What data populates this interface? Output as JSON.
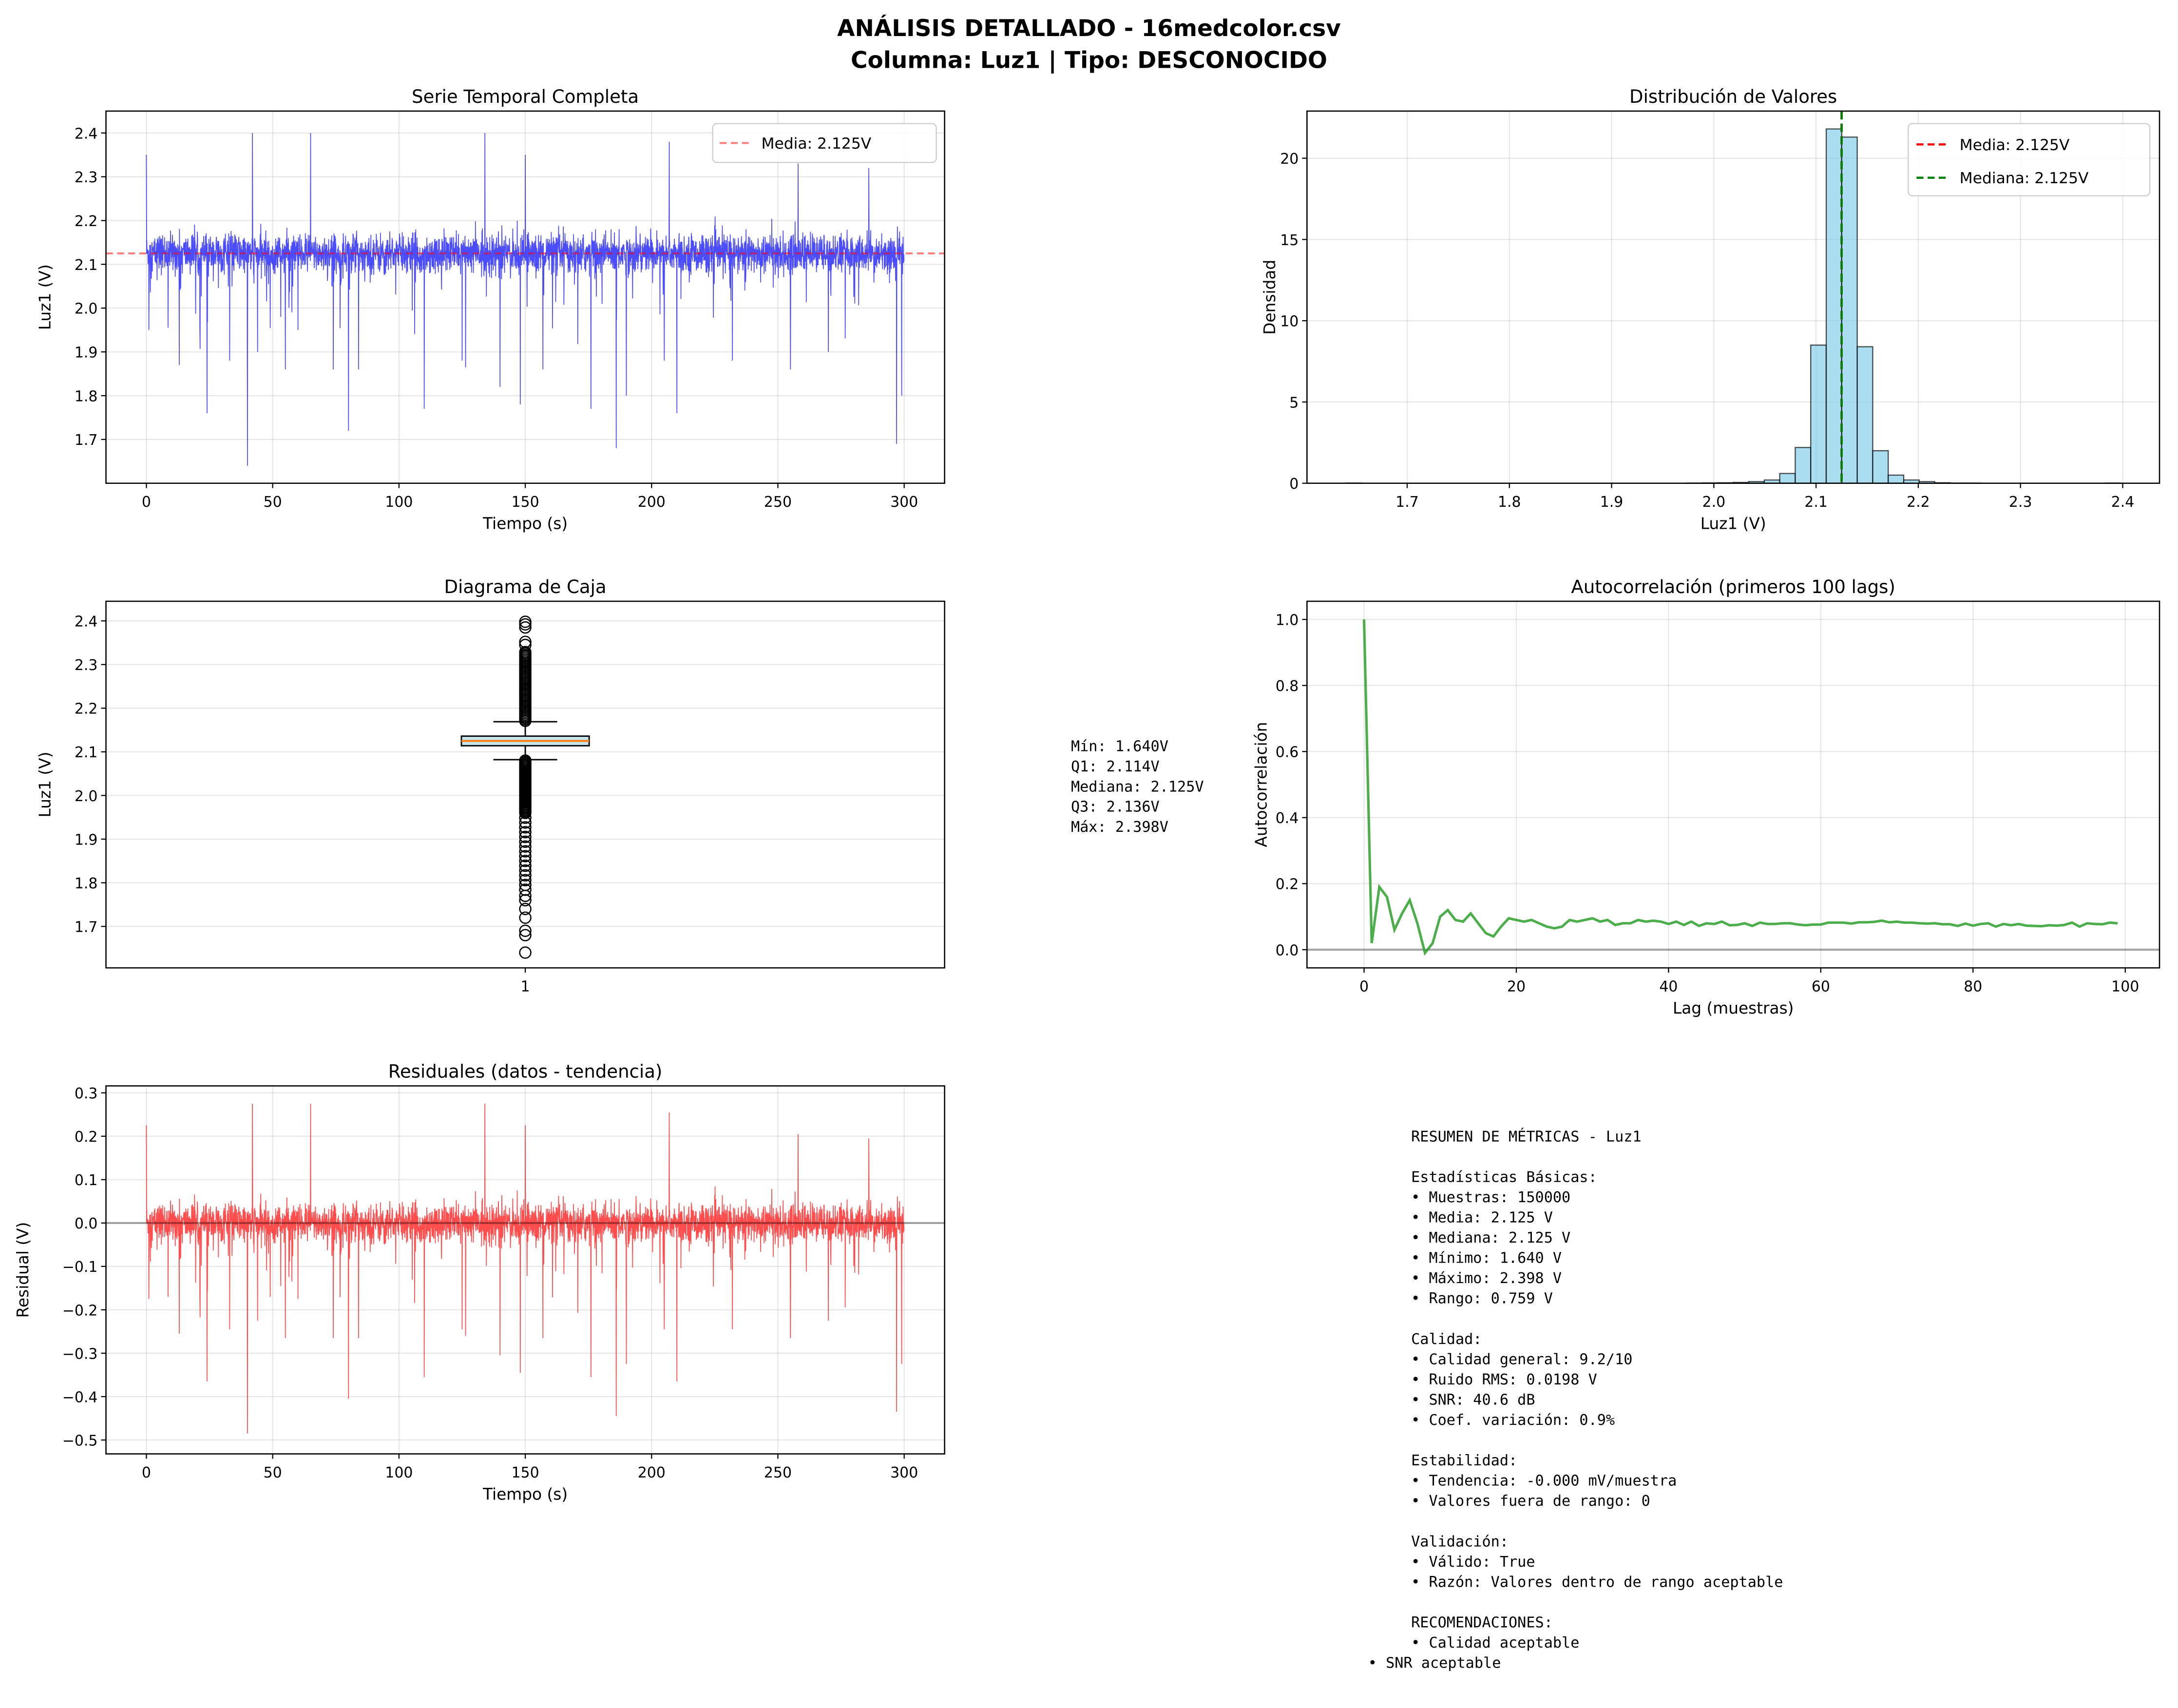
{
  "suptitle": [
    "ANÁLISIS DETALLADO - 16medcolor.csv",
    "Columna: Luz1 | Tipo: DESCONOCIDO"
  ],
  "colors": {
    "series": "#0000ff",
    "mean": "#ff0000",
    "median": "#008000",
    "hist": "#87ceeb",
    "acf": "#2ca02c",
    "residual": "#ff0000",
    "box_median": "#ff7f0e"
  },
  "chart_data": [
    {
      "id": "serie",
      "type": "line",
      "title": "Serie Temporal Completa",
      "xlabel": "Tiempo (s)",
      "ylabel": "Luz1 (V)",
      "xlim": [
        -16,
        316
      ],
      "ylim": [
        1.6,
        2.45
      ],
      "xticks": [
        "0",
        "50",
        "100",
        "150",
        "200",
        "250",
        "300"
      ],
      "yticks": [
        "1.7",
        "1.8",
        "1.9",
        "2.0",
        "2.1",
        "2.2",
        "2.3",
        "2.4"
      ],
      "samples": 150000,
      "duration_s": 300,
      "mean": 2.125,
      "noise_std": 0.02,
      "spikes": [
        [
          0,
          2.35
        ],
        [
          1,
          1.95
        ],
        [
          13,
          1.87
        ],
        [
          24,
          1.76
        ],
        [
          33,
          1.88
        ],
        [
          40,
          1.64
        ],
        [
          42,
          2.4
        ],
        [
          44,
          1.9
        ],
        [
          55,
          1.86
        ],
        [
          60,
          1.95
        ],
        [
          65,
          2.4
        ],
        [
          74,
          1.86
        ],
        [
          80,
          1.72
        ],
        [
          84,
          1.86
        ],
        [
          110,
          1.77
        ],
        [
          125,
          1.88
        ],
        [
          134,
          2.4
        ],
        [
          140,
          1.82
        ],
        [
          148,
          1.78
        ],
        [
          150,
          2.35
        ],
        [
          157,
          1.86
        ],
        [
          176,
          1.77
        ],
        [
          186,
          1.68
        ],
        [
          190,
          1.8
        ],
        [
          205,
          1.88
        ],
        [
          207,
          2.38
        ],
        [
          210,
          1.76
        ],
        [
          232,
          1.88
        ],
        [
          255,
          1.86
        ],
        [
          258,
          2.33
        ],
        [
          270,
          1.9
        ],
        [
          286,
          2.32
        ],
        [
          297,
          1.69
        ],
        [
          299,
          1.8
        ]
      ],
      "legend": [
        "Media: 2.125V"
      ],
      "legend_position": "upper right",
      "grid": true
    },
    {
      "id": "hist",
      "type": "bar",
      "title": "Distribución de Valores",
      "xlabel": "Luz1 (V)",
      "ylabel": "Densidad",
      "xlim": [
        1.602,
        2.436
      ],
      "ylim": [
        0,
        22.9
      ],
      "xticks": [
        "1.7",
        "1.8",
        "1.9",
        "2.0",
        "2.1",
        "2.2",
        "2.3",
        "2.4"
      ],
      "yticks": [
        "0",
        "5",
        "10",
        "15",
        "20"
      ],
      "bin_start": 1.64,
      "bin_width": 0.01516,
      "values": [
        0.01,
        0,
        0,
        0,
        0,
        0,
        0,
        0,
        0,
        0,
        0,
        0,
        0,
        0,
        0,
        0,
        0,
        0,
        0,
        0,
        0,
        0,
        0.01,
        0.02,
        0.03,
        0.05,
        0.1,
        0.2,
        0.6,
        2.2,
        8.5,
        21.8,
        21.3,
        8.4,
        2.0,
        0.5,
        0.2,
        0.1,
        0.03,
        0.01,
        0.01,
        0,
        0,
        0,
        0,
        0,
        0,
        0,
        0,
        0.01
      ],
      "mean": 2.125,
      "median": 2.125,
      "legend": [
        "Media: 2.125V",
        "Mediana: 2.125V"
      ],
      "legend_position": "upper right",
      "grid": true
    },
    {
      "id": "box",
      "type": "box",
      "title": "Diagrama de Caja",
      "ylabel": "Luz1 (V)",
      "ylim": [
        1.605,
        2.445
      ],
      "xticks": [
        "1"
      ],
      "yticks": [
        "1.7",
        "1.8",
        "1.9",
        "2.0",
        "2.1",
        "2.2",
        "2.3",
        "2.4"
      ],
      "min": 1.64,
      "q1": 2.114,
      "median": 2.125,
      "q3": 2.136,
      "max": 2.398,
      "whisker_low": 2.082,
      "whisker_high": 2.169,
      "stats_text": [
        "Mín: 1.640V",
        "Q1: 2.114V",
        "Mediana: 2.125V",
        "Q3: 2.136V",
        "Máx: 2.398V"
      ]
    },
    {
      "id": "acf",
      "type": "line",
      "title": "Autocorrelación (primeros 100 lags)",
      "xlabel": "Lag (muestras)",
      "ylabel": "Autocorrelación",
      "xlim": [
        -7.5,
        104.5
      ],
      "ylim": [
        -0.055,
        1.055
      ],
      "xticks": [
        "0",
        "20",
        "40",
        "60",
        "80",
        "100"
      ],
      "yticks": [
        "0.0",
        "0.2",
        "0.4",
        "0.6",
        "0.8",
        "1.0"
      ],
      "values": [
        1.0,
        0.02,
        0.19,
        0.16,
        0.06,
        0.11,
        0.15,
        0.08,
        -0.01,
        0.02,
        0.1,
        0.12,
        0.09,
        0.085,
        0.11,
        0.08,
        0.05,
        0.04,
        0.07,
        0.095,
        0.09,
        0.085,
        0.09,
        0.08,
        0.07,
        0.065,
        0.07,
        0.09,
        0.085,
        0.09,
        0.095,
        0.085,
        0.09,
        0.075,
        0.08,
        0.08,
        0.09,
        0.085,
        0.088,
        0.085,
        0.078,
        0.085,
        0.075,
        0.085,
        0.072,
        0.08,
        0.078,
        0.085,
        0.074,
        0.075,
        0.08,
        0.072,
        0.082,
        0.078,
        0.078,
        0.08,
        0.08,
        0.076,
        0.074,
        0.076,
        0.076,
        0.082,
        0.082,
        0.082,
        0.079,
        0.083,
        0.083,
        0.084,
        0.088,
        0.083,
        0.085,
        0.082,
        0.082,
        0.08,
        0.079,
        0.08,
        0.077,
        0.077,
        0.072,
        0.079,
        0.073,
        0.078,
        0.08,
        0.07,
        0.078,
        0.074,
        0.078,
        0.073,
        0.072,
        0.071,
        0.074,
        0.073,
        0.075,
        0.082,
        0.07,
        0.08,
        0.078,
        0.077,
        0.082,
        0.08
      ]
    },
    {
      "id": "resid",
      "type": "line",
      "title": "Residuales (datos - tendencia)",
      "xlabel": "Tiempo (s)",
      "ylabel": "Residual (V)",
      "xlim": [
        -16,
        316
      ],
      "ylim": [
        -0.532,
        0.316
      ],
      "xticks": [
        "0",
        "50",
        "100",
        "150",
        "200",
        "250",
        "300"
      ],
      "yticks": [
        "−0.5",
        "−0.4",
        "−0.3",
        "−0.2",
        "−0.1",
        "0.0",
        "0.1",
        "0.2",
        "0.3"
      ],
      "grid": true
    }
  ],
  "summary": [
    "RESUMEN DE MÉTRICAS - Luz1",
    "",
    "Estadísticas Básicas:",
    "• Muestras: 150000",
    "• Media: 2.125 V",
    "• Mediana: 2.125 V",
    "• Mínimo: 1.640 V",
    "• Máximo: 2.398 V",
    "• Rango: 0.759 V",
    "",
    "Calidad:",
    "• Calidad general: 9.2/10",
    "• Ruido RMS: 0.0198 V",
    "• SNR: 40.6 dB",
    "• Coef. variación: 0.9%",
    "",
    "Estabilidad:",
    "• Tendencia: -0.000 mV/muestra",
    "• Valores fuera de rango: 0",
    "",
    "Validación:",
    "• Válido: True",
    "• Razón: Valores dentro de rango aceptable",
    "",
    "RECOMENDACIONES:",
    "• Calidad aceptable",
    "• SNR aceptable"
  ]
}
